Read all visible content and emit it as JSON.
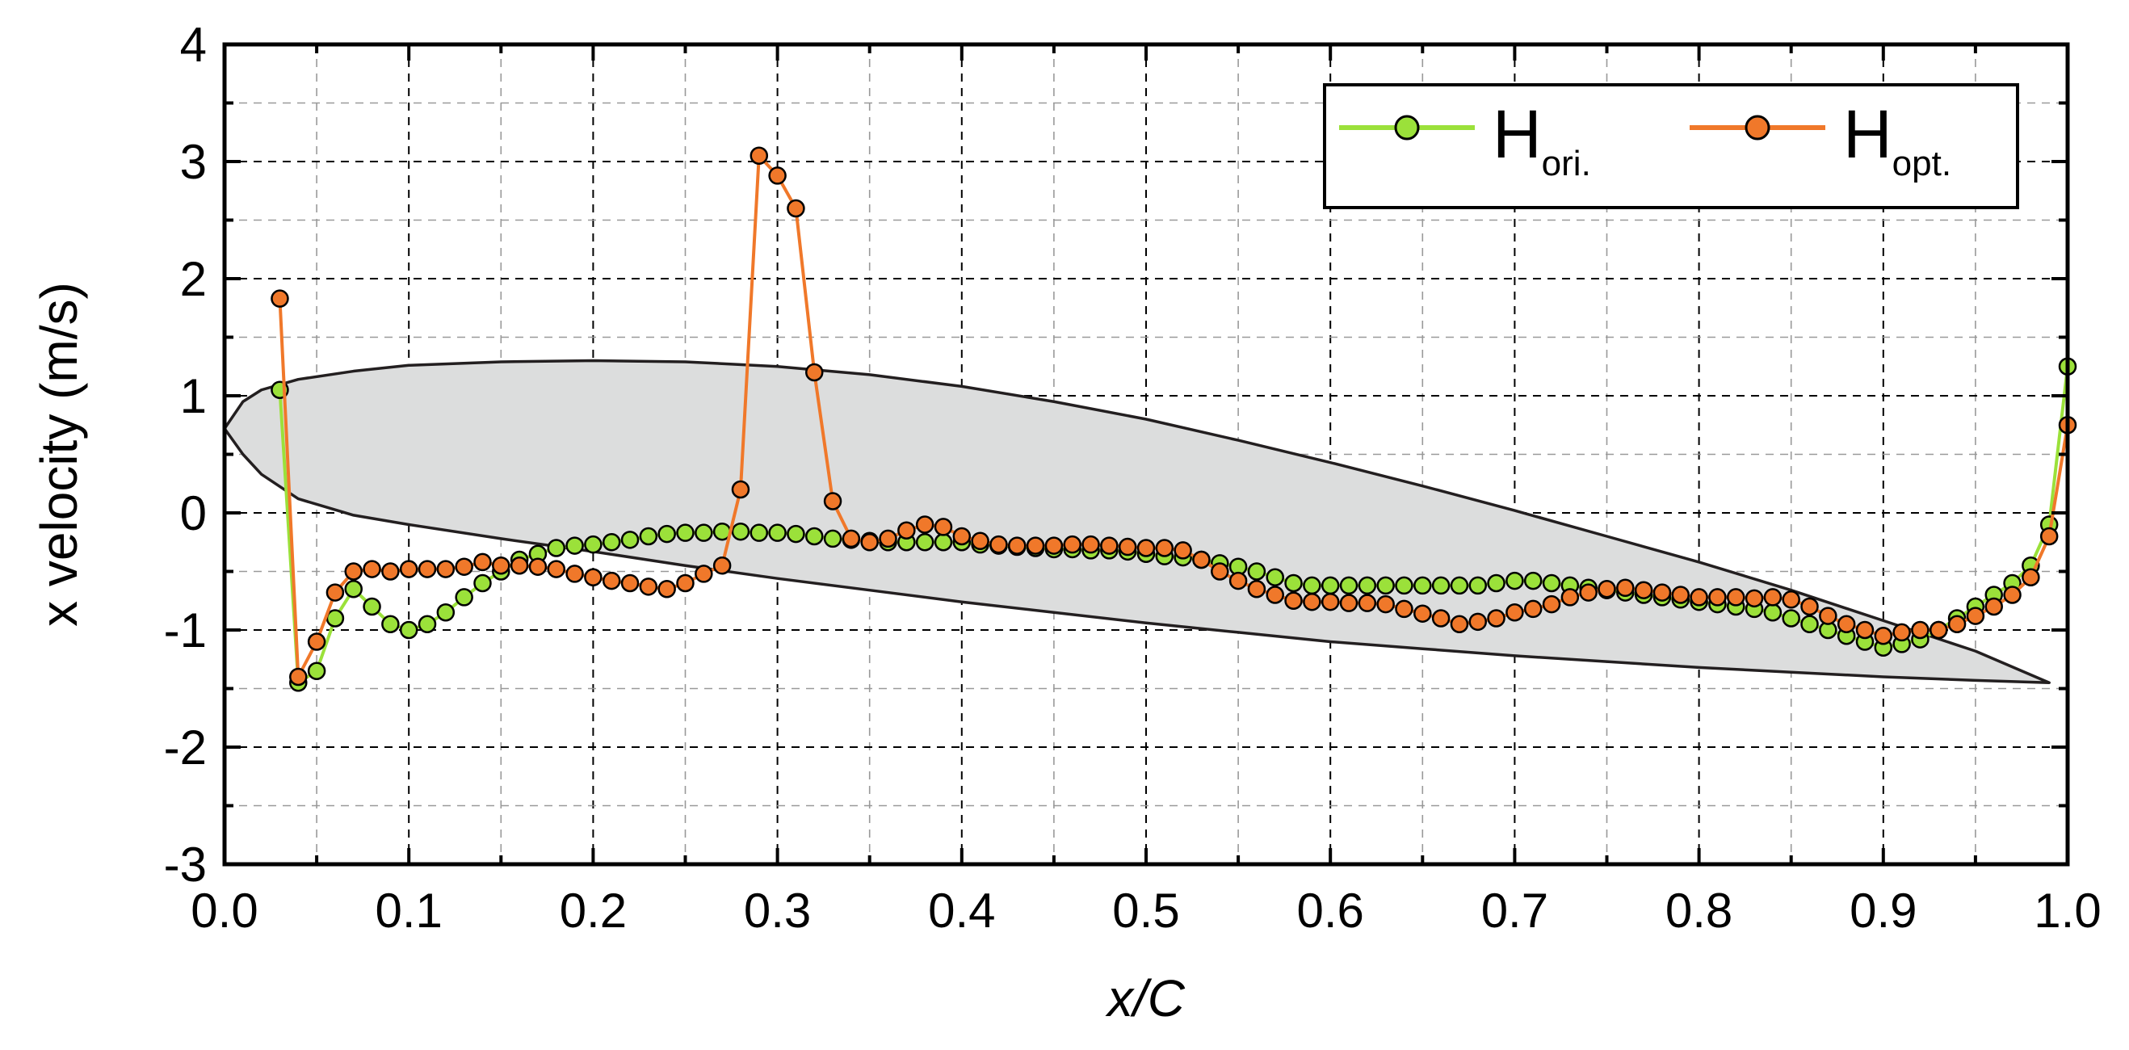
{
  "chart_data": {
    "type": "line",
    "xlabel": "x/C",
    "ylabel": "x velocity (m/s)",
    "xlim": [
      0.0,
      1.0
    ],
    "ylim": [
      -3,
      4
    ],
    "x_ticks": [
      "0.0",
      "0.1",
      "0.2",
      "0.3",
      "0.4",
      "0.5",
      "0.6",
      "0.7",
      "0.8",
      "0.9",
      "1.0"
    ],
    "y_ticks": [
      "-3",
      "-2",
      "-1",
      "0",
      "1",
      "2",
      "3",
      "4"
    ],
    "grid": true,
    "legend_position": "top-right",
    "colors": {
      "ori": "#9be13a",
      "opt": "#f0782a",
      "marker_edge": "#000000",
      "airfoil_fill": "#dcdddd",
      "airfoil_stroke": "#231f20"
    },
    "series": [
      {
        "key": "ori",
        "name": "H",
        "subscript": "ori.",
        "x": [
          0.03,
          0.04,
          0.05,
          0.06,
          0.07,
          0.08,
          0.09,
          0.1,
          0.11,
          0.12,
          0.13,
          0.14,
          0.15,
          0.16,
          0.17,
          0.18,
          0.19,
          0.2,
          0.21,
          0.22,
          0.23,
          0.24,
          0.25,
          0.26,
          0.27,
          0.28,
          0.29,
          0.3,
          0.31,
          0.32,
          0.33,
          0.34,
          0.35,
          0.36,
          0.37,
          0.38,
          0.39,
          0.4,
          0.41,
          0.42,
          0.43,
          0.44,
          0.45,
          0.46,
          0.47,
          0.48,
          0.49,
          0.5,
          0.51,
          0.52,
          0.53,
          0.54,
          0.55,
          0.56,
          0.57,
          0.58,
          0.59,
          0.6,
          0.61,
          0.62,
          0.63,
          0.64,
          0.65,
          0.66,
          0.67,
          0.68,
          0.69,
          0.7,
          0.71,
          0.72,
          0.73,
          0.74,
          0.75,
          0.76,
          0.77,
          0.78,
          0.79,
          0.8,
          0.81,
          0.82,
          0.83,
          0.84,
          0.85,
          0.86,
          0.87,
          0.88,
          0.89,
          0.9,
          0.91,
          0.92,
          0.93,
          0.94,
          0.95,
          0.96,
          0.97,
          0.98,
          0.99,
          1.0
        ],
        "values": [
          1.05,
          -1.45,
          -1.35,
          -0.9,
          -0.65,
          -0.8,
          -0.95,
          -1.0,
          -0.95,
          -0.85,
          -0.72,
          -0.6,
          -0.5,
          -0.4,
          -0.35,
          -0.3,
          -0.28,
          -0.27,
          -0.25,
          -0.23,
          -0.2,
          -0.18,
          -0.17,
          -0.17,
          -0.16,
          -0.16,
          -0.17,
          -0.17,
          -0.18,
          -0.2,
          -0.22,
          -0.23,
          -0.24,
          -0.25,
          -0.25,
          -0.25,
          -0.25,
          -0.25,
          -0.27,
          -0.28,
          -0.29,
          -0.3,
          -0.31,
          -0.31,
          -0.32,
          -0.32,
          -0.33,
          -0.35,
          -0.37,
          -0.38,
          -0.4,
          -0.43,
          -0.46,
          -0.5,
          -0.55,
          -0.6,
          -0.62,
          -0.62,
          -0.62,
          -0.62,
          -0.62,
          -0.62,
          -0.62,
          -0.62,
          -0.62,
          -0.62,
          -0.6,
          -0.58,
          -0.58,
          -0.6,
          -0.62,
          -0.64,
          -0.66,
          -0.68,
          -0.7,
          -0.72,
          -0.74,
          -0.76,
          -0.78,
          -0.8,
          -0.82,
          -0.85,
          -0.9,
          -0.95,
          -1.0,
          -1.05,
          -1.1,
          -1.15,
          -1.12,
          -1.08,
          -1.0,
          -0.9,
          -0.8,
          -0.7,
          -0.6,
          -0.45,
          -0.1,
          1.25
        ]
      },
      {
        "key": "opt",
        "name": "H",
        "subscript": "opt.",
        "x": [
          0.03,
          0.04,
          0.05,
          0.06,
          0.07,
          0.08,
          0.09,
          0.1,
          0.11,
          0.12,
          0.13,
          0.14,
          0.15,
          0.16,
          0.17,
          0.18,
          0.19,
          0.2,
          0.21,
          0.22,
          0.23,
          0.24,
          0.25,
          0.26,
          0.27,
          0.28,
          0.29,
          0.3,
          0.31,
          0.32,
          0.33,
          0.34,
          0.35,
          0.36,
          0.37,
          0.38,
          0.39,
          0.4,
          0.41,
          0.42,
          0.43,
          0.44,
          0.45,
          0.46,
          0.47,
          0.48,
          0.49,
          0.5,
          0.51,
          0.52,
          0.53,
          0.54,
          0.55,
          0.56,
          0.57,
          0.58,
          0.59,
          0.6,
          0.61,
          0.62,
          0.63,
          0.64,
          0.65,
          0.66,
          0.67,
          0.68,
          0.69,
          0.7,
          0.71,
          0.72,
          0.73,
          0.74,
          0.75,
          0.76,
          0.77,
          0.78,
          0.79,
          0.8,
          0.81,
          0.82,
          0.83,
          0.84,
          0.85,
          0.86,
          0.87,
          0.88,
          0.89,
          0.9,
          0.91,
          0.92,
          0.93,
          0.94,
          0.95,
          0.96,
          0.97,
          0.98,
          0.99,
          1.0
        ],
        "values": [
          1.83,
          -1.4,
          -1.1,
          -0.68,
          -0.5,
          -0.48,
          -0.5,
          -0.48,
          -0.48,
          -0.48,
          -0.46,
          -0.42,
          -0.45,
          -0.45,
          -0.46,
          -0.48,
          -0.52,
          -0.55,
          -0.58,
          -0.6,
          -0.63,
          -0.65,
          -0.6,
          -0.52,
          -0.45,
          0.2,
          3.05,
          2.88,
          2.6,
          1.2,
          0.1,
          -0.22,
          -0.25,
          -0.22,
          -0.15,
          -0.1,
          -0.12,
          -0.2,
          -0.24,
          -0.27,
          -0.28,
          -0.28,
          -0.28,
          -0.27,
          -0.27,
          -0.28,
          -0.29,
          -0.3,
          -0.3,
          -0.32,
          -0.4,
          -0.5,
          -0.58,
          -0.65,
          -0.7,
          -0.75,
          -0.76,
          -0.76,
          -0.77,
          -0.77,
          -0.78,
          -0.82,
          -0.86,
          -0.9,
          -0.95,
          -0.93,
          -0.9,
          -0.85,
          -0.82,
          -0.78,
          -0.72,
          -0.68,
          -0.65,
          -0.64,
          -0.66,
          -0.68,
          -0.7,
          -0.72,
          -0.72,
          -0.72,
          -0.73,
          -0.72,
          -0.74,
          -0.8,
          -0.88,
          -0.95,
          -1.0,
          -1.05,
          -1.02,
          -1.0,
          -1.0,
          -0.95,
          -0.88,
          -0.8,
          -0.7,
          -0.55,
          -0.2,
          0.75
        ]
      }
    ],
    "airfoil": {
      "upper": [
        [
          0.0,
          0.72
        ],
        [
          0.01,
          0.95
        ],
        [
          0.02,
          1.05
        ],
        [
          0.04,
          1.14
        ],
        [
          0.07,
          1.21
        ],
        [
          0.1,
          1.26
        ],
        [
          0.15,
          1.29
        ],
        [
          0.2,
          1.3
        ],
        [
          0.25,
          1.29
        ],
        [
          0.3,
          1.25
        ],
        [
          0.35,
          1.18
        ],
        [
          0.4,
          1.08
        ],
        [
          0.45,
          0.95
        ],
        [
          0.5,
          0.8
        ],
        [
          0.55,
          0.62
        ],
        [
          0.6,
          0.43
        ],
        [
          0.65,
          0.23
        ],
        [
          0.7,
          0.02
        ],
        [
          0.75,
          -0.2
        ],
        [
          0.8,
          -0.42
        ],
        [
          0.85,
          -0.66
        ],
        [
          0.9,
          -0.92
        ],
        [
          0.95,
          -1.18
        ],
        [
          0.99,
          -1.45
        ]
      ],
      "lower": [
        [
          0.99,
          -1.45
        ],
        [
          0.95,
          -1.43
        ],
        [
          0.9,
          -1.4
        ],
        [
          0.85,
          -1.36
        ],
        [
          0.8,
          -1.32
        ],
        [
          0.75,
          -1.27
        ],
        [
          0.7,
          -1.22
        ],
        [
          0.65,
          -1.16
        ],
        [
          0.6,
          -1.1
        ],
        [
          0.55,
          -1.02
        ],
        [
          0.5,
          -0.94
        ],
        [
          0.45,
          -0.85
        ],
        [
          0.4,
          -0.76
        ],
        [
          0.35,
          -0.66
        ],
        [
          0.3,
          -0.56
        ],
        [
          0.25,
          -0.45
        ],
        [
          0.2,
          -0.33
        ],
        [
          0.15,
          -0.22
        ],
        [
          0.1,
          -0.1
        ],
        [
          0.07,
          -0.02
        ],
        [
          0.04,
          0.12
        ],
        [
          0.02,
          0.33
        ],
        [
          0.01,
          0.5
        ],
        [
          0.0,
          0.72
        ]
      ]
    }
  }
}
